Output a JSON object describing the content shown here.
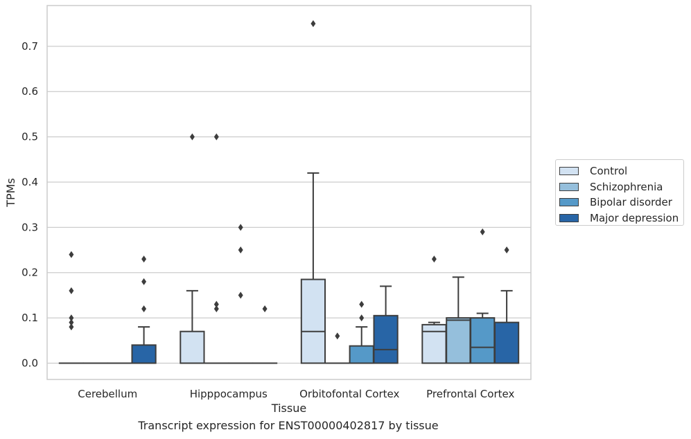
{
  "caption": "Transcript expression for ENST00000402817 by tissue",
  "colors": {
    "Control": "#d2e2f2",
    "Schizophrenia": "#95bfdc",
    "Bipolar disorder": "#5599c8",
    "Major depression": "#2865a6",
    "frame": "#cccccc",
    "grid": "#cccccc",
    "lines": "#3d3d3d"
  },
  "chart_data": {
    "type": "box",
    "xlabel": "Tissue",
    "ylabel": "TPMs",
    "ylim": [
      -0.036,
      0.79
    ],
    "yticks": [
      0.0,
      0.1,
      0.2,
      0.3,
      0.4,
      0.5,
      0.6,
      0.7
    ],
    "ytick_labels": [
      "0.0",
      "0.1",
      "0.2",
      "0.3",
      "0.4",
      "0.5",
      "0.6",
      "0.7"
    ],
    "grid": true,
    "legend_position": "right-outside",
    "categories": [
      "Cerebellum",
      "Hipppocampus",
      "Orbitofontal Cortex",
      "Prefrontal Cortex"
    ],
    "series": [
      {
        "name": "Control",
        "boxes": [
          {
            "q1": 0,
            "median": 0,
            "q3": 0,
            "whisker_low": 0,
            "whisker_high": 0,
            "outliers": [
              0.1,
              0.09,
              0.24,
              0.16,
              0.08
            ]
          },
          {
            "q1": 0,
            "median": 0,
            "q3": 0.07,
            "whisker_low": 0,
            "whisker_high": 0.16,
            "outliers": [
              0.5
            ]
          },
          {
            "q1": 0,
            "median": 0.07,
            "q3": 0.185,
            "whisker_low": 0,
            "whisker_high": 0.42,
            "outliers": [
              0.75
            ]
          },
          {
            "q1": 0,
            "median": 0.07,
            "q3": 0.085,
            "whisker_low": 0,
            "whisker_high": 0.09,
            "outliers": [
              0.23
            ]
          }
        ]
      },
      {
        "name": "Schizophrenia",
        "boxes": [
          {
            "q1": 0,
            "median": 0,
            "q3": 0,
            "whisker_low": 0,
            "whisker_high": 0,
            "outliers": []
          },
          {
            "q1": 0,
            "median": 0,
            "q3": 0,
            "whisker_low": 0,
            "whisker_high": 0,
            "outliers": [
              0.13,
              0.12,
              0.5
            ]
          },
          {
            "q1": 0,
            "median": 0,
            "q3": 0,
            "whisker_low": 0,
            "whisker_high": 0,
            "outliers": [
              0.06
            ]
          },
          {
            "q1": 0,
            "median": 0.095,
            "q3": 0.1,
            "whisker_low": 0,
            "whisker_high": 0.19,
            "outliers": []
          }
        ]
      },
      {
        "name": "Bipolar disorder",
        "boxes": [
          {
            "q1": 0,
            "median": 0,
            "q3": 0,
            "whisker_low": 0,
            "whisker_high": 0,
            "outliers": []
          },
          {
            "q1": 0,
            "median": 0,
            "q3": 0,
            "whisker_low": 0,
            "whisker_high": 0,
            "outliers": [
              0.3,
              0.25,
              0.15
            ]
          },
          {
            "q1": 0,
            "median": 0,
            "q3": 0.038,
            "whisker_low": 0,
            "whisker_high": 0.08,
            "outliers": [
              0.13,
              0.1
            ]
          },
          {
            "q1": 0,
            "median": 0.035,
            "q3": 0.1,
            "whisker_low": 0,
            "whisker_high": 0.11,
            "outliers": [
              0.29
            ]
          }
        ]
      },
      {
        "name": "Major depression",
        "boxes": [
          {
            "q1": 0,
            "median": 0,
            "q3": 0.04,
            "whisker_low": 0,
            "whisker_high": 0.08,
            "outliers": [
              0.23,
              0.18,
              0.12
            ]
          },
          {
            "q1": 0,
            "median": 0,
            "q3": 0,
            "whisker_low": 0,
            "whisker_high": 0,
            "outliers": [
              0.12
            ]
          },
          {
            "q1": 0,
            "median": 0.03,
            "q3": 0.105,
            "whisker_low": 0,
            "whisker_high": 0.17,
            "outliers": []
          },
          {
            "q1": 0,
            "median": 0,
            "q3": 0.09,
            "whisker_low": 0,
            "whisker_high": 0.16,
            "outliers": [
              0.25
            ]
          }
        ]
      }
    ]
  }
}
